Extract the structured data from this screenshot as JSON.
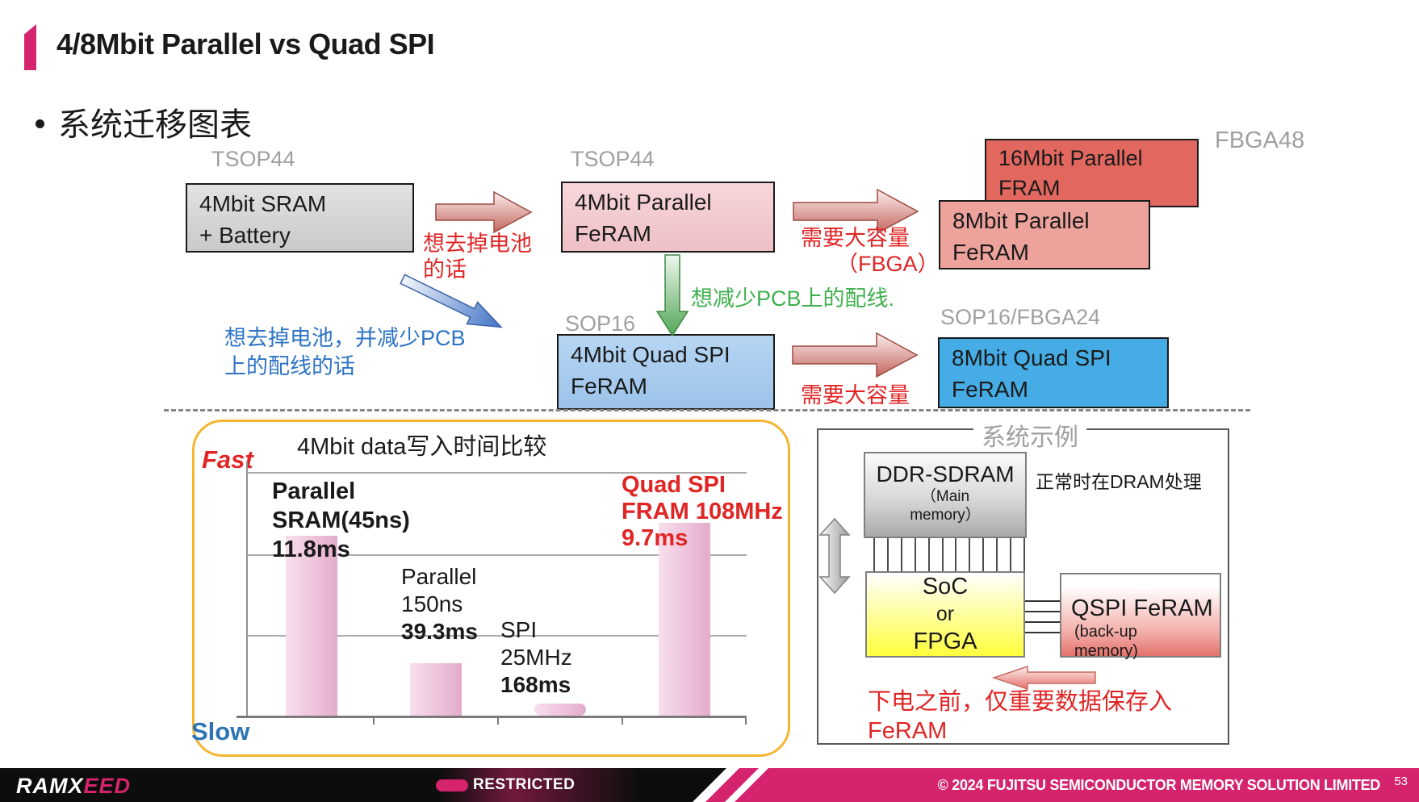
{
  "slide": {
    "title": "4/8Mbit Parallel vs Quad SPI",
    "bullet": "系统迁移图表"
  },
  "migration": {
    "package_labels": {
      "sram": "TSOP44",
      "parallel4": "TSOP44",
      "fbga": "FBGA48",
      "qspi4": "SOP16",
      "qspi8": "SOP16/FBGA24"
    },
    "boxes": {
      "sram": {
        "line1": "4Mbit SRAM",
        "line2": "+ Battery"
      },
      "parallel4": {
        "line1": "4Mbit Parallel",
        "line2": "FeRAM"
      },
      "fram16": {
        "line1": "16Mbit Parallel",
        "line2": "FRAM"
      },
      "parallel8": {
        "line1": "8Mbit Parallel",
        "line2": "FeRAM"
      },
      "qspi4": {
        "line1": "4Mbit Quad SPI",
        "line2": "FeRAM"
      },
      "qspi8": {
        "line1": "8Mbit Quad SPI",
        "line2": "FeRAM"
      }
    },
    "annotations": {
      "remove_battery": {
        "line1": "想去掉电池",
        "line2": "的话"
      },
      "need_capacity_fbga": {
        "line1": "需要大容量",
        "line2": "（FBGA）"
      },
      "reduce_pcb": "想减少PCB上的配线.",
      "remove_battery_reduce_pcb": {
        "line1": "想去掉电池，并减少PCB",
        "line2": "上的配线的话"
      },
      "need_capacity": "需要大容量"
    }
  },
  "chart_data": {
    "type": "bar",
    "title": "4Mbit data写入时间比较",
    "y_axis_top_label": "Fast",
    "y_axis_bottom_label": "Slow",
    "note": "bar height represents relative write speed (taller = faster); values are 4Mbit data write times",
    "categories": [
      "Parallel SRAM(45ns)",
      "Parallel 150ns",
      "SPI 25MHz",
      "Quad SPI FRAM 108MHz"
    ],
    "values_ms": [
      11.8,
      39.3,
      168,
      9.7
    ],
    "grid": true,
    "bars": [
      {
        "lines": [
          "Parallel",
          "SRAM(45ns)",
          "11.8ms"
        ],
        "value_ms": 11.8,
        "height_frac": 0.74
      },
      {
        "lines": [
          "Parallel",
          "150ns",
          "39.3ms"
        ],
        "value_ms": 39.3,
        "height_frac": 0.215
      },
      {
        "lines": [
          "SPI",
          "25MHz",
          "168ms"
        ],
        "value_ms": 168,
        "height_frac": 0.05
      },
      {
        "lines": [
          "Quad SPI",
          "FRAM 108MHz",
          "9.7ms"
        ],
        "value_ms": 9.7,
        "height_frac": 0.79
      }
    ]
  },
  "system_example": {
    "title": "系统示例",
    "ddr": {
      "line1": "DDR-SDRAM",
      "line2": "（Main",
      "line3": "memory）"
    },
    "normal_note": "正常时在DRAM处理",
    "soc": {
      "line1": "SoC",
      "line2": "or",
      "line3": "FPGA"
    },
    "qspi": {
      "line1": "QSPI FeRAM",
      "line2": "(back-up",
      "line3": "memory)"
    },
    "power_down_note": {
      "line1": "下电之前，仅重要数据保存入",
      "line2": "FeRAM"
    }
  },
  "footer": {
    "logo_white": "RAMX",
    "logo_pink": "EED",
    "restricted": "RESTRICTED",
    "copyright": "© 2024 FUJITSU SEMICONDUCTOR MEMORY SOLUTION LIMITED",
    "page_number": "53"
  },
  "colors": {
    "brand_magenta": "#d5246d",
    "red_text": "#e02525",
    "blue_text": "#2e74c5",
    "green_text": "#3fb04d",
    "gray_label": "#a0a0a0",
    "card_border": "#f5b52f"
  }
}
